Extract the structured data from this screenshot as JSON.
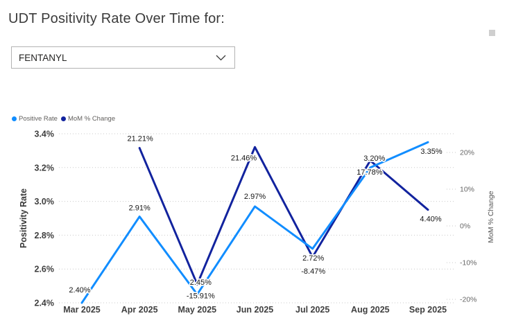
{
  "header": {
    "title": "UDT Positivity Rate Over Time for:"
  },
  "controls": {
    "substance_dropdown": {
      "value": "FENTANYL",
      "icon": "chevron-down-icon"
    },
    "scroll_handle_color": "#cfcfcf"
  },
  "chart_data": {
    "type": "line",
    "dual_axis": true,
    "grid": "dotted-horizontal",
    "legend_position": "top-left",
    "categories": [
      "Mar 2025",
      "Apr 2025",
      "May 2025",
      "Jun 2025",
      "Jul 2025",
      "Aug 2025",
      "Sep 2025"
    ],
    "left_axis": {
      "title": "Positivity Rate",
      "min": 2.4,
      "max": 3.4,
      "ticks": [
        {
          "value": 3.4,
          "label": "3.4%"
        },
        {
          "value": 3.2,
          "label": "3.2%"
        },
        {
          "value": 3.0,
          "label": "3.0%"
        },
        {
          "value": 2.8,
          "label": "2.8%"
        },
        {
          "value": 2.6,
          "label": "2.6%"
        },
        {
          "value": 2.4,
          "label": "2.4%"
        }
      ]
    },
    "right_axis": {
      "title": "MoM % Change",
      "min": -20,
      "max": 20,
      "ticks": [
        {
          "value": 20,
          "label": "20%"
        },
        {
          "value": 10,
          "label": "10%"
        },
        {
          "value": 0,
          "label": "0%"
        },
        {
          "value": -10,
          "label": "-10%"
        },
        {
          "value": -20,
          "label": "-20%"
        }
      ]
    },
    "series": [
      {
        "name": "Positive Rate",
        "axis": "left",
        "color": "#118DFF",
        "values": [
          2.4,
          2.91,
          2.45,
          2.97,
          2.72,
          3.2,
          3.35
        ],
        "labels": [
          "2.40%",
          "2.91%",
          "2.45%",
          "2.97%",
          "2.72%",
          "3.20%",
          "3.35%"
        ],
        "label_offsets": [
          [
            -3,
            -19
          ],
          [
            0,
            -13
          ],
          [
            5,
            -18
          ],
          [
            0,
            -15
          ],
          [
            1,
            13
          ],
          [
            6,
            -14
          ],
          [
            5,
            13
          ]
        ]
      },
      {
        "name": "MoM % Change",
        "axis": "right",
        "color": "#12239E",
        "values": [
          null,
          21.21,
          -15.91,
          21.46,
          -8.47,
          17.78,
          4.4
        ],
        "labels": [
          null,
          "21.21%",
          "-15.91%",
          "21.46%",
          "-8.47%",
          "17.78%",
          "4.40%"
        ],
        "label_offsets": [
          null,
          [
            1,
            -14
          ],
          [
            5,
            16
          ],
          [
            -16,
            15
          ],
          [
            1,
            20
          ],
          [
            -1,
            16
          ],
          [
            4,
            13
          ]
        ]
      }
    ]
  }
}
